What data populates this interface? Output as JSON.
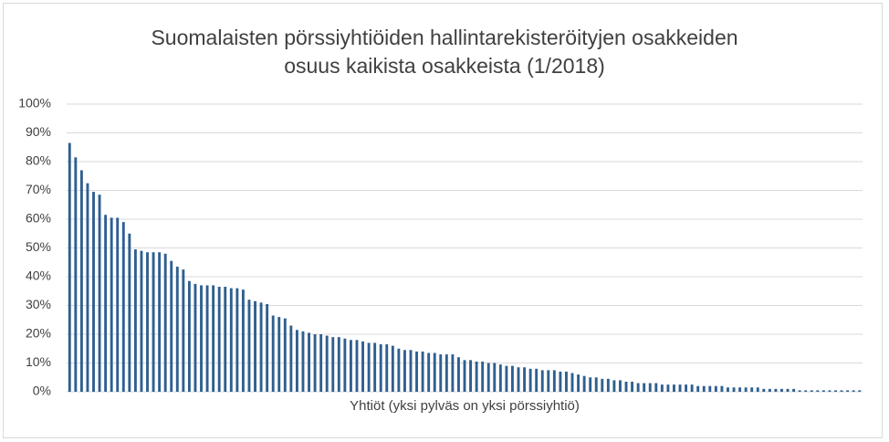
{
  "chart_data": {
    "type": "bar",
    "title": [
      "Suomalaisten pörssiyhtiöiden hallintarekisteröityjen osakkeiden",
      "osuus kaikista osakkeista (1/2018)"
    ],
    "x_label": "Yhtiöt (yksi pylväs on yksi pörssiyhtiö)",
    "values": [
      86.5,
      81.5,
      77,
      72.5,
      69.5,
      68.5,
      61.5,
      60.5,
      60.5,
      59,
      55,
      49.5,
      49,
      48.5,
      48.5,
      48.5,
      48,
      45.5,
      43.5,
      42.5,
      38.5,
      37.5,
      37,
      37,
      37,
      36.5,
      36.5,
      36,
      36,
      35.5,
      32,
      31.5,
      31,
      30.5,
      26.5,
      26,
      25.5,
      23,
      21.5,
      21,
      20.5,
      20,
      20,
      19.5,
      19,
      19,
      18.5,
      18,
      18,
      17.5,
      17,
      17,
      16.5,
      16.5,
      16,
      15,
      14.5,
      14.5,
      14,
      14,
      13.5,
      13.5,
      13,
      13,
      13,
      12,
      11,
      11,
      10.5,
      10.5,
      10,
      10,
      9.5,
      9,
      9,
      8.5,
      8.5,
      8,
      8,
      7.5,
      7.5,
      7.5,
      7,
      7,
      6.5,
      6,
      5.5,
      5,
      5,
      4.5,
      4.5,
      4,
      4,
      3.5,
      3.5,
      3,
      3,
      3,
      3,
      2.5,
      2.5,
      2.5,
      2.5,
      2.5,
      2.5,
      2,
      2,
      2,
      2,
      2,
      1.5,
      1.5,
      1.5,
      1.5,
      1.5,
      1.5,
      1,
      1,
      1,
      1,
      1,
      1,
      0.5,
      0.5,
      0.5,
      0.5,
      0.5,
      0.5,
      0.5,
      0.5,
      0.5,
      0.5,
      0.5
    ],
    "color": "#2f5f8f",
    "ylim": [
      0,
      100
    ],
    "yticks": [
      {
        "value": 0,
        "label": "0%"
      },
      {
        "value": 10,
        "label": "10%"
      },
      {
        "value": 20,
        "label": "20%"
      },
      {
        "value": 30,
        "label": "30%"
      },
      {
        "value": 40,
        "label": "40%"
      },
      {
        "value": 50,
        "label": "50%"
      },
      {
        "value": 60,
        "label": "60%"
      },
      {
        "value": 70,
        "label": "70%"
      },
      {
        "value": 80,
        "label": "80%"
      },
      {
        "value": 90,
        "label": "90%"
      },
      {
        "value": 100,
        "label": "100%"
      }
    ],
    "grid": true
  }
}
